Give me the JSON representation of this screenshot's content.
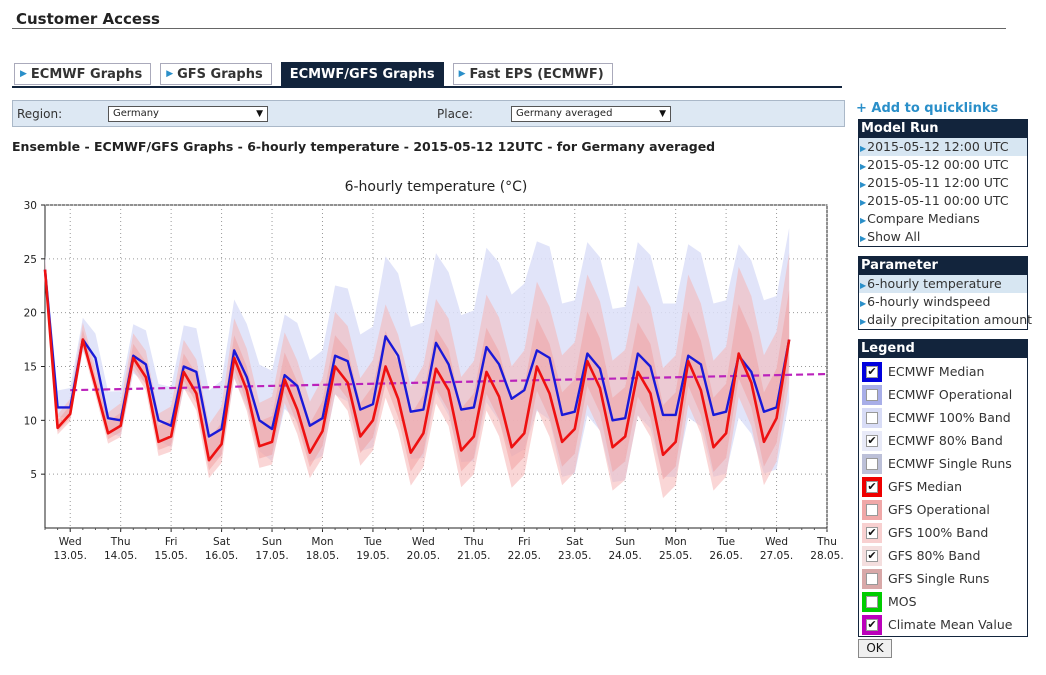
{
  "page": {
    "title": "Customer Access"
  },
  "tabs": [
    {
      "label": "ECMWF Graphs",
      "active": false
    },
    {
      "label": "GFS Graphs",
      "active": false
    },
    {
      "label": "ECMWF/GFS Graphs",
      "active": true
    },
    {
      "label": "Fast EPS (ECMWF)",
      "active": false
    }
  ],
  "filters": {
    "region_label": "Region:",
    "region_value": "Germany",
    "place_label": "Place:",
    "place_value": "Germany averaged"
  },
  "graph_heading": "Ensemble - ECMWF/GFS Graphs - 6-hourly temperature - 2015-05-12 12UTC - for Germany averaged",
  "quicklinks": {
    "label": "Add to quicklinks"
  },
  "model_run": {
    "header": "Model Run",
    "items": [
      {
        "label": "2015-05-12 12:00 UTC",
        "selected": true
      },
      {
        "label": "2015-05-12 00:00 UTC",
        "selected": false
      },
      {
        "label": "2015-05-11 12:00 UTC",
        "selected": false
      },
      {
        "label": "2015-05-11 00:00 UTC",
        "selected": false
      },
      {
        "label": "Compare Medians",
        "selected": false
      },
      {
        "label": "Show All",
        "selected": false
      }
    ]
  },
  "parameter": {
    "header": "Parameter",
    "items": [
      {
        "label": "6-hourly temperature",
        "selected": true
      },
      {
        "label": "6-hourly windspeed",
        "selected": false
      },
      {
        "label": "daily precipitation amount",
        "selected": false
      }
    ]
  },
  "legend": {
    "header": "Legend",
    "items": [
      {
        "label": "ECMWF Median",
        "color": "#0000dd",
        "checked": true
      },
      {
        "label": "ECMWF Operational",
        "color": "#a8aee8",
        "checked": false
      },
      {
        "label": "ECMWF 100% Band",
        "color": "#d8dcf6",
        "checked": false
      },
      {
        "label": "ECMWF 80% Band",
        "color": "#e8eaf8",
        "checked": true
      },
      {
        "label": "ECMWF Single Runs",
        "color": "#bcc0d8",
        "checked": false
      },
      {
        "label": "GFS Median",
        "color": "#ee0000",
        "checked": true
      },
      {
        "label": "GFS Operational",
        "color": "#f0a8a8",
        "checked": false
      },
      {
        "label": "GFS 100% Band",
        "color": "#f8d0d0",
        "checked": true
      },
      {
        "label": "GFS 80% Band",
        "color": "#f4dede",
        "checked": true
      },
      {
        "label": "GFS Single Runs",
        "color": "#d8a8a8",
        "checked": false
      },
      {
        "label": "MOS",
        "color": "#00cc00",
        "checked": false
      },
      {
        "label": "Climate Mean Value",
        "color": "#bb00bb",
        "checked": true
      }
    ]
  },
  "ok_button": {
    "label": "OK"
  },
  "chart_data": {
    "type": "line",
    "title": "6-hourly temperature (°C)",
    "ylim": [
      0,
      30
    ],
    "y_ticks": [
      5,
      10,
      15,
      20,
      25,
      30
    ],
    "x_unit_days_from": "2015-05-12 12:00",
    "x_ticks": [
      {
        "day": "Wed",
        "date": "13.05."
      },
      {
        "day": "Thu",
        "date": "14.05."
      },
      {
        "day": "Fri",
        "date": "15.05."
      },
      {
        "day": "Sat",
        "date": "16.05."
      },
      {
        "day": "Sun",
        "date": "17.05."
      },
      {
        "day": "Mon",
        "date": "18.05."
      },
      {
        "day": "Tue",
        "date": "19.05."
      },
      {
        "day": "Wed",
        "date": "20.05."
      },
      {
        "day": "Thu",
        "date": "21.05."
      },
      {
        "day": "Fri",
        "date": "22.05."
      },
      {
        "day": "Sat",
        "date": "23.05."
      },
      {
        "day": "Sun",
        "date": "24.05."
      },
      {
        "day": "Mon",
        "date": "25.05."
      },
      {
        "day": "Tue",
        "date": "26.05."
      },
      {
        "day": "Wed",
        "date": "27.05."
      },
      {
        "day": "Thu",
        "date": "28.05."
      }
    ],
    "grid": "dotted",
    "series": [
      {
        "name": "ECMWF Median",
        "color": "#1a1ad8",
        "values": [
          24.0,
          11.2,
          11.2,
          17.5,
          15.8,
          10.2,
          10.0,
          16.0,
          15.2,
          10.0,
          9.5,
          15.0,
          14.5,
          8.5,
          9.2,
          16.5,
          14.0,
          10.0,
          9.2,
          14.2,
          13.2,
          9.5,
          10.2,
          16.0,
          15.5,
          11.0,
          11.5,
          17.8,
          16.0,
          10.8,
          11.0,
          17.2,
          15.2,
          11.0,
          11.2,
          16.8,
          15.2,
          12.0,
          12.8,
          16.5,
          15.8,
          10.5,
          10.8,
          16.2,
          14.8,
          10.0,
          10.2,
          16.2,
          15.0,
          10.5,
          10.5,
          16.0,
          15.2,
          10.5,
          10.8,
          16.0,
          14.5,
          10.8,
          11.2,
          17.5
        ]
      },
      {
        "name": "GFS Median",
        "color": "#ee1111",
        "values": [
          24.0,
          9.3,
          10.6,
          17.5,
          13.2,
          8.8,
          9.5,
          15.8,
          14.0,
          8.0,
          8.5,
          14.5,
          12.5,
          6.3,
          7.8,
          15.8,
          12.8,
          7.6,
          8.0,
          13.8,
          11.0,
          7.0,
          9.0,
          15.0,
          13.5,
          8.5,
          10.0,
          15.0,
          12.0,
          7.0,
          8.8,
          14.8,
          12.8,
          7.2,
          8.5,
          14.5,
          12.2,
          7.5,
          8.8,
          15.0,
          12.5,
          8.0,
          9.2,
          15.5,
          13.0,
          7.5,
          8.5,
          14.5,
          12.5,
          6.8,
          8.0,
          15.5,
          12.8,
          7.5,
          8.8,
          16.2,
          13.5,
          8.0,
          10.2,
          17.5
        ]
      },
      {
        "name": "Climate Mean Value",
        "color": "#bb22bb",
        "dash": true,
        "values": [
          12.8,
          12.9,
          13.0,
          13.1,
          13.2,
          13.3,
          13.4,
          13.5,
          13.6,
          13.7,
          13.8,
          13.9,
          14.0,
          14.1,
          14.2,
          14.3
        ]
      },
      {
        "name": "GFS 100% Band",
        "color": "#f7a9a9"
      },
      {
        "name": "ECMWF 80% Band",
        "color": "#dcdff8"
      }
    ]
  }
}
